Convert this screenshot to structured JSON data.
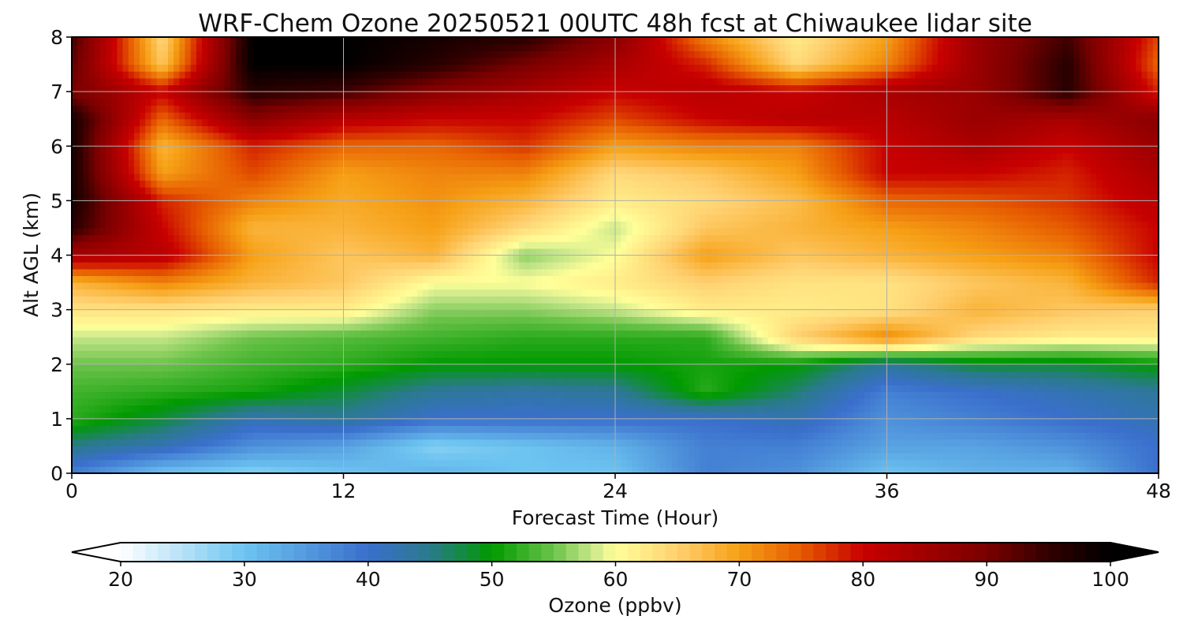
{
  "chart_data": {
    "type": "heatmap",
    "subtype": "filled-contour",
    "title": "WRF-Chem Ozone  20250521 00UTC 48h fcst at Chiwaukee lidar site",
    "xlabel": "Forecast Time (Hour)",
    "ylabel": "Alt AGL (km)",
    "xlim": [
      0,
      48
    ],
    "ylim": [
      0,
      8
    ],
    "xticks": [
      0,
      12,
      24,
      36,
      48
    ],
    "yticks": [
      0,
      1,
      2,
      3,
      4,
      5,
      6,
      7,
      8
    ],
    "grid": true,
    "colorbar": {
      "label": "Ozone  (ppbv)",
      "range": [
        20,
        100
      ],
      "ticks": [
        20,
        30,
        40,
        50,
        60,
        70,
        80,
        90,
        100
      ],
      "extend": "both",
      "placement": "bottom",
      "stops": [
        {
          "value": 20,
          "color": "#ffffff"
        },
        {
          "value": 30,
          "color": "#6cc4f0"
        },
        {
          "value": 40,
          "color": "#3a6fcc"
        },
        {
          "value": 45,
          "color": "#2a7a8c"
        },
        {
          "value": 50,
          "color": "#009a00"
        },
        {
          "value": 55,
          "color": "#6cc34a"
        },
        {
          "value": 58,
          "color": "#c6e68a"
        },
        {
          "value": 60,
          "color": "#ffff99"
        },
        {
          "value": 65,
          "color": "#ffd070"
        },
        {
          "value": 70,
          "color": "#f6a016"
        },
        {
          "value": 75,
          "color": "#e65a00"
        },
        {
          "value": 80,
          "color": "#c80000"
        },
        {
          "value": 90,
          "color": "#7a0000"
        },
        {
          "value": 95,
          "color": "#320000"
        },
        {
          "value": 100,
          "color": "#000000"
        }
      ]
    },
    "x": [
      0,
      4,
      8,
      12,
      16,
      20,
      24,
      28,
      32,
      36,
      40,
      44,
      48
    ],
    "y": [
      0,
      0.5,
      1,
      1.5,
      2,
      2.5,
      3,
      3.5,
      4,
      4.5,
      5,
      5.5,
      6,
      6.5,
      7,
      7.5,
      8
    ],
    "z": [
      [
        38,
        30,
        28,
        30,
        32,
        30,
        30,
        38,
        36,
        30,
        32,
        32,
        40
      ],
      [
        45,
        42,
        36,
        34,
        28,
        30,
        32,
        38,
        38,
        34,
        34,
        36,
        40
      ],
      [
        52,
        48,
        42,
        44,
        40,
        40,
        40,
        40,
        42,
        36,
        38,
        40,
        42
      ],
      [
        53,
        52,
        51,
        48,
        44,
        43,
        44,
        52,
        46,
        38,
        40,
        42,
        44
      ],
      [
        55,
        55,
        53,
        52,
        50,
        50,
        50,
        51,
        50,
        44,
        48,
        48,
        50
      ],
      [
        58,
        58,
        55,
        54,
        53,
        52,
        52,
        52,
        65,
        72,
        64,
        62,
        62
      ],
      [
        63,
        63,
        62,
        62,
        56,
        56,
        58,
        62,
        62,
        63,
        68,
        66,
        65
      ],
      [
        68,
        72,
        68,
        66,
        60,
        60,
        62,
        65,
        63,
        63,
        66,
        68,
        78
      ],
      [
        84,
        82,
        70,
        66,
        68,
        56,
        60,
        70,
        66,
        68,
        70,
        72,
        80
      ],
      [
        96,
        80,
        68,
        68,
        70,
        64,
        58,
        66,
        68,
        70,
        72,
        75,
        80
      ],
      [
        98,
        78,
        72,
        69,
        71,
        68,
        62,
        64,
        67,
        74,
        75,
        77,
        82
      ],
      [
        98,
        70,
        76,
        70,
        72,
        72,
        64,
        66,
        70,
        80,
        80,
        78,
        84
      ],
      [
        98,
        68,
        78,
        74,
        74,
        77,
        70,
        72,
        72,
        80,
        84,
        80,
        86
      ],
      [
        98,
        74,
        88,
        82,
        80,
        80,
        76,
        80,
        82,
        82,
        86,
        84,
        88
      ],
      [
        90,
        80,
        96,
        94,
        88,
        84,
        80,
        82,
        80,
        84,
        86,
        96,
        78
      ],
      [
        92,
        66,
        100,
        100,
        96,
        90,
        84,
        78,
        64,
        72,
        86,
        96,
        74
      ],
      [
        94,
        64,
        100,
        100,
        98,
        96,
        88,
        72,
        62,
        70,
        86,
        94,
        76
      ]
    ]
  }
}
